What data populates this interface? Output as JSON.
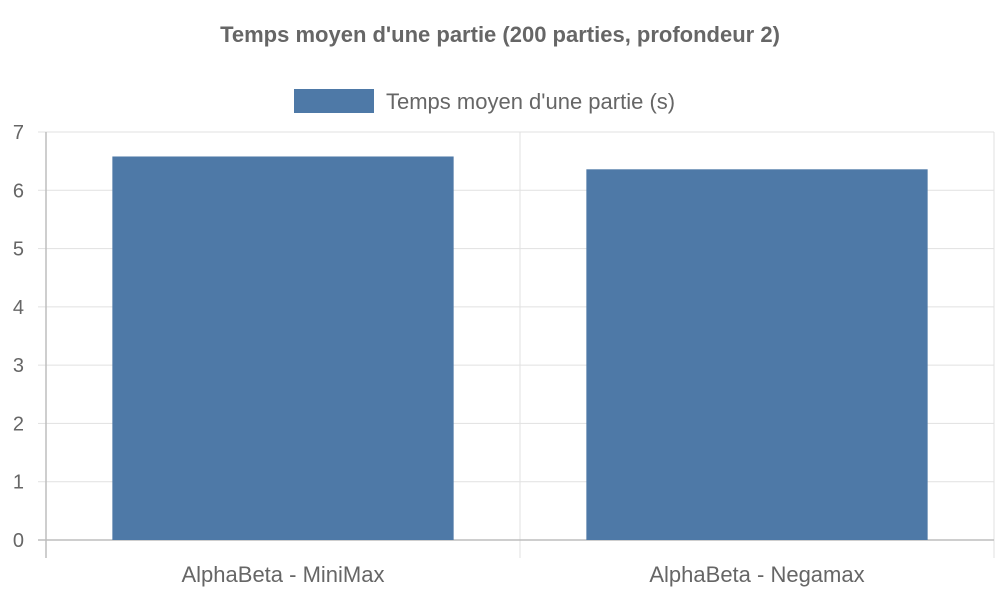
{
  "chart_data": {
    "type": "bar",
    "title": "Temps moyen d'une partie (200 parties, profondeur 2)",
    "categories": [
      "AlphaBeta - MiniMax",
      "AlphaBeta - Negamax"
    ],
    "series": [
      {
        "name": "Temps moyen d'une partie (s)",
        "values": [
          6.58,
          6.36
        ],
        "color": "#4e79a7"
      }
    ],
    "ylim": [
      0,
      7
    ],
    "yticks": [
      "0",
      "1",
      "2",
      "3",
      "4",
      "5",
      "6",
      "7"
    ],
    "grid": true,
    "legend": "top"
  }
}
